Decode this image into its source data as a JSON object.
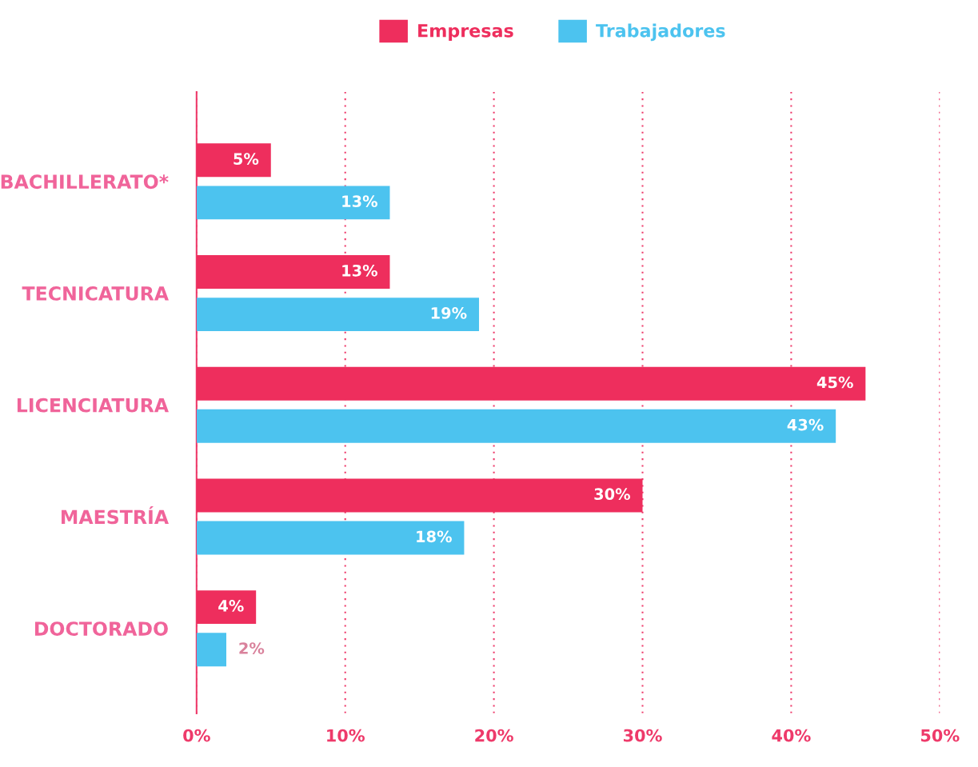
{
  "chart_data": {
    "type": "bar",
    "orientation": "horizontal",
    "categories": [
      "BACHILLERATO*",
      "TECNICATURA",
      "LICENCIATURA",
      "MAESTRÍA",
      "DOCTORADO"
    ],
    "series": [
      {
        "name": "Empresas",
        "color": "#ee2e5d",
        "values": [
          5,
          13,
          45,
          30,
          4
        ],
        "value_labels": [
          "5%",
          "13%",
          "45%",
          "30%",
          "4%"
        ]
      },
      {
        "name": "Trabajadores",
        "color": "#4cc3ef",
        "values": [
          13,
          19,
          43,
          18,
          2
        ],
        "value_labels": [
          "13%",
          "19%",
          "43%",
          "18%",
          "2%"
        ]
      }
    ],
    "xlim": [
      0,
      50
    ],
    "xticks": [
      {
        "value": 0,
        "label": "0%"
      },
      {
        "value": 10,
        "label": "10%"
      },
      {
        "value": 20,
        "label": "20%"
      },
      {
        "value": 30,
        "label": "30%"
      },
      {
        "value": 40,
        "label": "40%"
      },
      {
        "value": 50,
        "label": "50%"
      }
    ],
    "grid": "x",
    "legend": "top"
  }
}
